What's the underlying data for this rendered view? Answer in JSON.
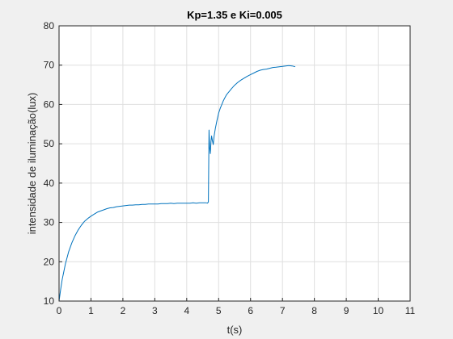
{
  "chart_data": {
    "type": "line",
    "title": "Kp=1.35 e Ki=0.005",
    "xlabel": "t(s)",
    "ylabel": "intensidade de iluminação(lux)",
    "xlim": [
      0,
      11
    ],
    "ylim": [
      10,
      80
    ],
    "x_ticks": [
      "0",
      "1",
      "2",
      "3",
      "4",
      "5",
      "6",
      "7",
      "8",
      "9",
      "10",
      "11"
    ],
    "y_ticks": [
      "10",
      "20",
      "30",
      "40",
      "50",
      "60",
      "70",
      "80"
    ],
    "grid": true,
    "legend": "none",
    "series": [
      {
        "color": "#0072BD",
        "x": [
          0.0,
          0.05,
          0.1,
          0.15,
          0.2,
          0.3,
          0.4,
          0.5,
          0.6,
          0.7,
          0.8,
          0.9,
          1.0,
          1.1,
          1.2,
          1.3,
          1.4,
          1.5,
          1.6,
          1.7,
          1.8,
          1.9,
          2.0,
          2.1,
          2.2,
          2.3,
          2.4,
          2.5,
          2.6,
          2.7,
          2.8,
          2.9,
          3.0,
          3.1,
          3.2,
          3.3,
          3.4,
          3.5,
          3.6,
          3.7,
          3.8,
          3.9,
          4.0,
          4.1,
          4.2,
          4.3,
          4.4,
          4.5,
          4.6,
          4.65,
          4.68,
          4.7,
          4.72,
          4.74,
          4.76,
          4.78,
          4.8,
          4.83,
          4.86,
          4.9,
          4.95,
          5.0,
          5.05,
          5.1,
          5.15,
          5.2,
          5.25,
          5.3,
          5.35,
          5.4,
          5.5,
          5.6,
          5.7,
          5.8,
          5.9,
          6.0,
          6.1,
          6.2,
          6.3,
          6.4,
          6.5,
          6.6,
          6.7,
          6.8,
          6.9,
          7.0,
          7.1,
          7.2,
          7.3,
          7.4
        ],
        "y": [
          10.0,
          13.0,
          15.5,
          17.5,
          19.5,
          22.5,
          24.8,
          26.6,
          28.1,
          29.3,
          30.3,
          31.0,
          31.6,
          32.1,
          32.6,
          32.9,
          33.2,
          33.5,
          33.7,
          33.8,
          34.0,
          34.1,
          34.2,
          34.3,
          34.4,
          34.4,
          34.5,
          34.5,
          34.6,
          34.6,
          34.7,
          34.7,
          34.7,
          34.7,
          34.8,
          34.8,
          34.8,
          34.9,
          34.8,
          34.9,
          34.9,
          34.9,
          34.9,
          34.9,
          35.0,
          34.9,
          35.0,
          35.0,
          35.0,
          34.9,
          35.2,
          53.5,
          49.0,
          47.5,
          50.5,
          52.0,
          51.0,
          49.8,
          52.0,
          54.0,
          56.0,
          57.8,
          59.0,
          60.0,
          61.0,
          61.8,
          62.5,
          63.0,
          63.5,
          64.0,
          64.9,
          65.6,
          66.2,
          66.7,
          67.2,
          67.6,
          68.0,
          68.4,
          68.7,
          68.9,
          69.0,
          69.2,
          69.4,
          69.5,
          69.6,
          69.7,
          69.8,
          69.9,
          69.8,
          69.6
        ]
      }
    ]
  }
}
